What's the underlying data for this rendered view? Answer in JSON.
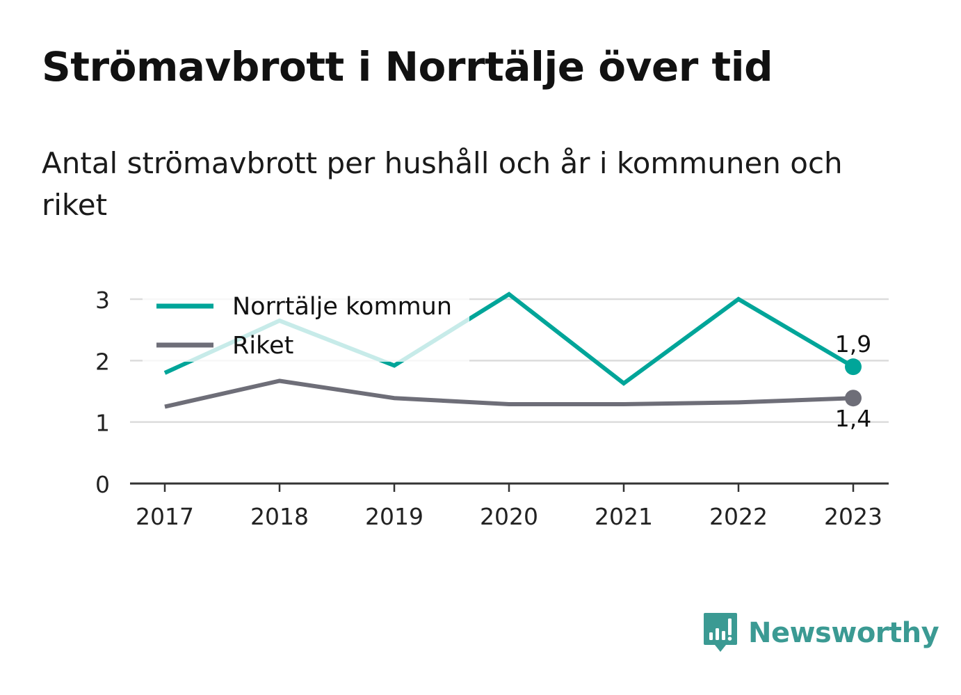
{
  "header": {
    "title": "Strömavbrott i Norrtälje över tid",
    "subtitle": "Antal strömavbrott per hushåll och år i kommunen och riket"
  },
  "brand": {
    "name": "Newsworthy",
    "icon": "newsworthy-logo-icon",
    "color": "#3b9a93"
  },
  "chart_data": {
    "type": "line",
    "x": [
      "2017",
      "2018",
      "2019",
      "2020",
      "2021",
      "2022",
      "2023"
    ],
    "y_ticks": [
      0,
      1,
      2,
      3
    ],
    "ylim": [
      0,
      3
    ],
    "grid": true,
    "legend_position": "top-left",
    "series": [
      {
        "name": "Norrtälje kommun",
        "color": "#00a599",
        "values": [
          1.8,
          2.65,
          1.92,
          3.08,
          1.63,
          3.0,
          1.9
        ],
        "end_label": "1,9"
      },
      {
        "name": "Riket",
        "color": "#6e6e78",
        "values": [
          1.25,
          1.67,
          1.39,
          1.29,
          1.29,
          1.32,
          1.39
        ],
        "end_label": "1,4"
      }
    ]
  }
}
